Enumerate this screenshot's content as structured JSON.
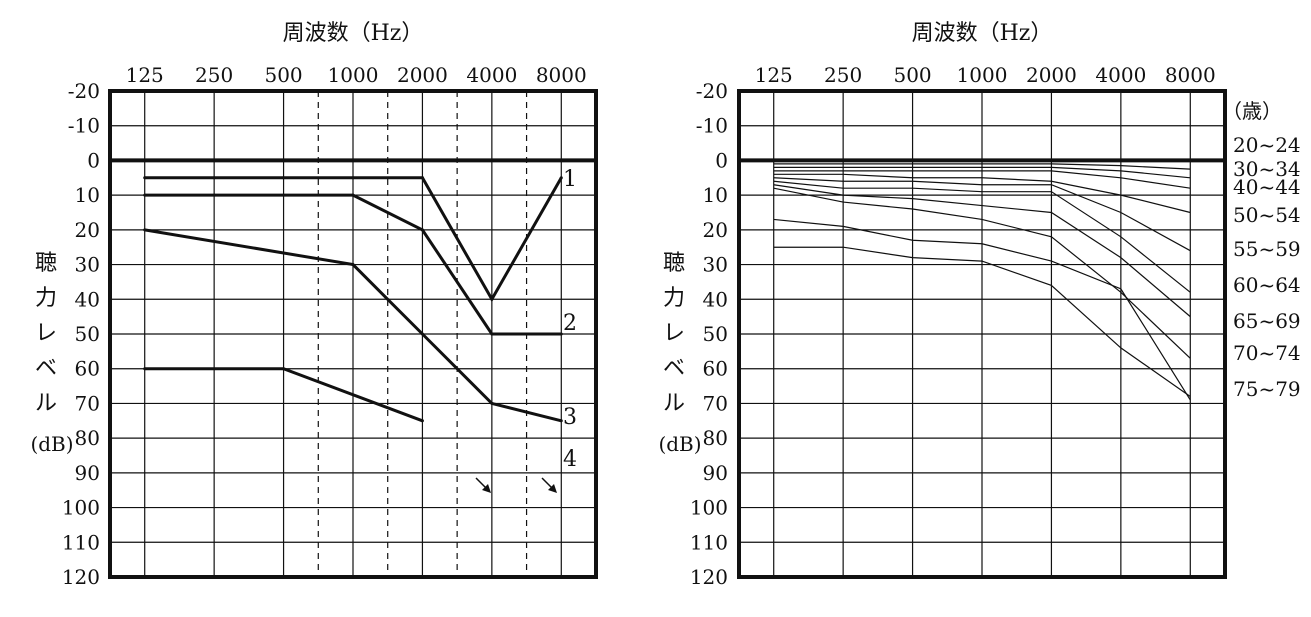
{
  "chart_data": [
    {
      "type": "line",
      "title": "周波数（Hz）",
      "ylabel_chars": [
        "聴",
        "力",
        "レ",
        "ベ",
        "ル"
      ],
      "yunit": "(dB)",
      "x_ticks": [
        "125",
        "250",
        "500",
        "1000",
        "2000",
        "4000",
        "8000"
      ],
      "y_ticks": [
        "-20",
        "-10",
        "0",
        "10",
        "20",
        "30",
        "40",
        "50",
        "60",
        "70",
        "80",
        "90",
        "100",
        "110",
        "120"
      ],
      "ylim": [
        -20,
        120
      ],
      "reversed_y": true,
      "dashed_intermediate_freqs": [
        "750",
        "1500",
        "3000",
        "6000"
      ],
      "series": [
        {
          "name": "1",
          "x": [
            "125",
            "250",
            "500",
            "1000",
            "2000",
            "4000",
            "8000"
          ],
          "values": [
            5,
            5,
            5,
            5,
            5,
            40,
            5
          ]
        },
        {
          "name": "2",
          "x": [
            "125",
            "250",
            "500",
            "1000",
            "2000",
            "4000",
            "8000"
          ],
          "values": [
            10,
            10,
            10,
            10,
            20,
            50,
            50
          ]
        },
        {
          "name": "3",
          "x": [
            "125",
            "1000",
            "2000",
            "4000",
            "8000"
          ],
          "values": [
            20,
            30,
            50,
            70,
            75
          ]
        },
        {
          "name": "4",
          "x": [
            "125",
            "500",
            "2000"
          ],
          "values": [
            60,
            60,
            75
          ],
          "no_response": [
            "4000",
            "8000"
          ]
        }
      ]
    },
    {
      "type": "line",
      "title": "周波数（Hz）",
      "ylabel_chars": [
        "聴",
        "力",
        "レ",
        "ベ",
        "ル"
      ],
      "yunit": "(dB)",
      "x_ticks": [
        "125",
        "250",
        "500",
        "1000",
        "2000",
        "4000",
        "8000"
      ],
      "y_ticks": [
        "-20",
        "-10",
        "0",
        "10",
        "20",
        "30",
        "40",
        "50",
        "60",
        "70",
        "80",
        "90",
        "100",
        "110",
        "120"
      ],
      "ylim": [
        -20,
        120
      ],
      "reversed_y": true,
      "legend_title": "（歳）",
      "series": [
        {
          "name": "20~24",
          "values": [
            1,
            1,
            1,
            1,
            1,
            1.5,
            2.5
          ]
        },
        {
          "name": "30~34",
          "values": [
            2,
            2,
            2,
            2,
            2,
            3,
            5
          ]
        },
        {
          "name": "40~44",
          "values": [
            3,
            3,
            3,
            3,
            3,
            5,
            8
          ]
        },
        {
          "name": "50~54",
          "values": [
            4,
            4,
            5,
            5,
            6,
            10,
            15
          ]
        },
        {
          "name": "55~59",
          "values": [
            5,
            6,
            6,
            7,
            7,
            15,
            26
          ]
        },
        {
          "name": "60~64",
          "values": [
            6,
            8,
            8,
            9,
            9,
            22,
            38
          ]
        },
        {
          "name": "65~69",
          "values": [
            7,
            10,
            11,
            13,
            15,
            28,
            45
          ]
        },
        {
          "name": "70~74",
          "values": [
            8,
            12,
            14,
            17,
            22,
            38,
            57
          ]
        },
        {
          "name": "75~79",
          "values": [
            17,
            19,
            23,
            24,
            29,
            37,
            69
          ]
        }
      ],
      "series_right_extra": {
        "60~64": [
          10,
          12,
          13,
          16,
          24,
          34,
          40
        ]
      },
      "extra_line": {
        "values": [
          25,
          25,
          28,
          29,
          36,
          54,
          68
        ]
      }
    }
  ]
}
